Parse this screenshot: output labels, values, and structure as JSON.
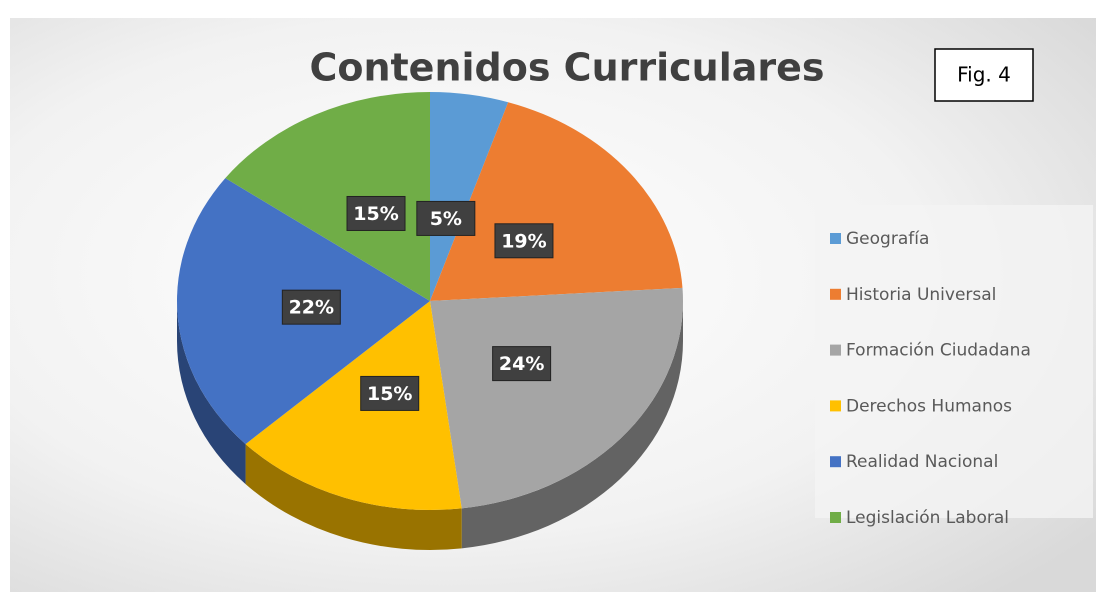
{
  "chart_data": {
    "type": "pie",
    "title": "Contenidos Curriculares",
    "annotation": "Fig. 4",
    "categories": [
      "Geografía",
      "Historia Universal",
      "Formación Ciudadana",
      "Derechos Humanos",
      "Realidad Nacional",
      "Legislación Laboral"
    ],
    "values": [
      5,
      19,
      24,
      15,
      22,
      15
    ],
    "value_labels": [
      "5%",
      "19%",
      "24%",
      "15%",
      "22%",
      "15%"
    ],
    "colors": [
      "#5b9bd5",
      "#ed7d31",
      "#a5a5a5",
      "#ffc000",
      "#4472c4",
      "#70ad47"
    ],
    "legend": "right"
  }
}
